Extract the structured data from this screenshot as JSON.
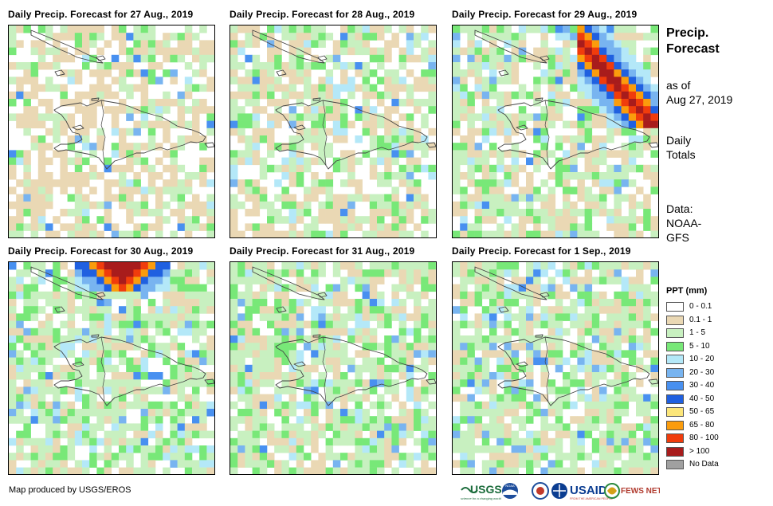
{
  "panels": [
    {
      "title": "Daily Precip. Forecast for 27 Aug., 2019",
      "seed": 11,
      "wet": 0.3,
      "storm": null
    },
    {
      "title": "Daily Precip. Forecast for 28 Aug., 2019",
      "seed": 23,
      "wet": 0.45,
      "storm": null
    },
    {
      "title": "Daily Precip. Forecast for 29 Aug., 2019",
      "seed": 37,
      "wet": 0.5,
      "storm": "diag"
    },
    {
      "title": "Daily Precip. Forecast for 30 Aug., 2019",
      "seed": 41,
      "wet": 0.65,
      "storm": "top"
    },
    {
      "title": "Daily Precip. Forecast for 31 Aug., 2019",
      "seed": 53,
      "wet": 0.6,
      "storm": null
    },
    {
      "title": "Daily Precip. Forecast for 1 Sep., 2019",
      "seed": 67,
      "wet": 0.6,
      "storm": null
    }
  ],
  "sidebar": {
    "title_line1": "Precip.",
    "title_line2": "Forecast",
    "asof_line1": "as of",
    "asof_line2": "Aug 27, 2019",
    "daily_line1": "Daily",
    "daily_line2": "Totals",
    "data_line1": "Data:",
    "data_line2": "NOAA-",
    "data_line3": "GFS"
  },
  "legend": {
    "title": "PPT (mm)",
    "items": [
      {
        "label": "0 - 0.1",
        "color": "#ffffff"
      },
      {
        "label": "0.1 - 1",
        "color": "#ead8b4"
      },
      {
        "label": "1 - 5",
        "color": "#c8f0c0"
      },
      {
        "label": "5 - 10",
        "color": "#78e878"
      },
      {
        "label": "10 - 20",
        "color": "#b4e8f8"
      },
      {
        "label": "20 - 30",
        "color": "#78b4f0"
      },
      {
        "label": "30 - 40",
        "color": "#4890f0"
      },
      {
        "label": "40 - 50",
        "color": "#2060e0"
      },
      {
        "label": "50 - 65",
        "color": "#fce67a"
      },
      {
        "label": "65 - 80",
        "color": "#fb9c0c"
      },
      {
        "label": "80 - 100",
        "color": "#f03c0c"
      },
      {
        "label": "> 100",
        "color": "#a81c1c"
      },
      {
        "label": "No Data",
        "color": "#a0a0a0"
      }
    ]
  },
  "credit": "Map produced by USGS/EROS",
  "logos": {
    "usgs": "USGS",
    "usgs_tagline": "science for a changing world",
    "usaid": "USAID",
    "usaid_tagline": "FROM THE AMERICAN PEOPLE",
    "fews": "FEWS NET",
    "noaa": "NOAA"
  }
}
